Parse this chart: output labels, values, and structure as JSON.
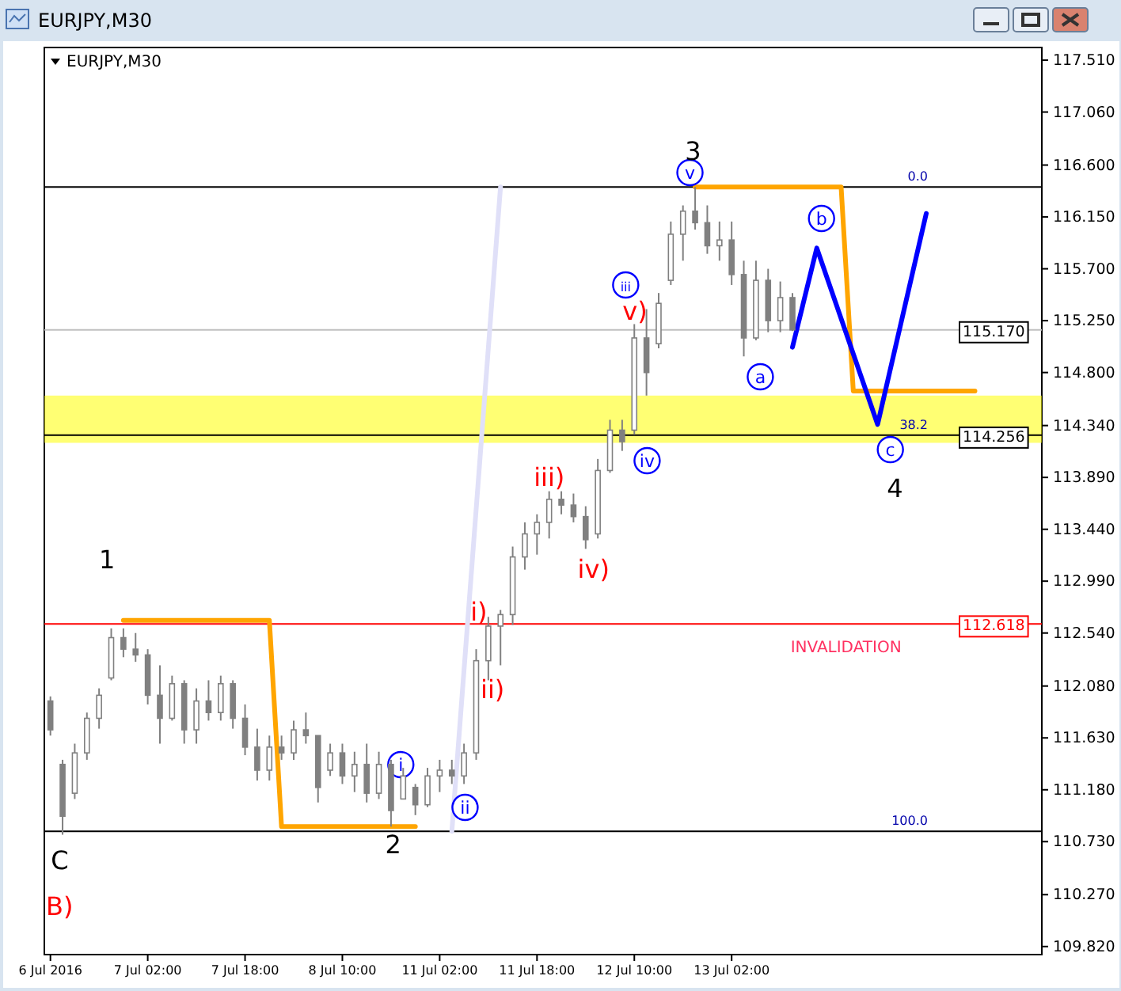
{
  "chart_data": {
    "type": "candlestick",
    "title": "EURJPY,M30",
    "subtitle": "EURJPY,M30",
    "color": "#808080",
    "categories": [
      "6 Jul 2016",
      null,
      null,
      null,
      null,
      null,
      null,
      null,
      "7 Jul 02:00",
      null,
      null,
      null,
      null,
      null,
      null,
      null,
      "7 Jul 18:00",
      null,
      null,
      null,
      null,
      null,
      null,
      null,
      "8 Jul 10:00",
      null,
      null,
      null,
      null,
      null,
      null,
      null,
      "11 Jul 02:00",
      null,
      null,
      null,
      null,
      null,
      null,
      null,
      "11 Jul 18:00",
      null,
      null,
      null,
      null,
      null,
      null,
      null,
      "12 Jul 10:00",
      null,
      null,
      null,
      null,
      null,
      null,
      null,
      "13 Jul 02:00",
      null,
      null,
      null,
      null,
      null,
      null,
      null,
      null,
      null,
      null,
      null,
      null,
      null,
      null,
      null,
      null,
      null,
      null,
      null,
      null,
      null,
      null,
      null,
      null,
      null
    ],
    "ohlc": [
      [
        111.95,
        111.99,
        111.65,
        111.7
      ],
      [
        111.4,
        111.44,
        110.79,
        110.95
      ],
      [
        111.15,
        111.58,
        111.1,
        111.5
      ],
      [
        111.5,
        111.85,
        111.44,
        111.8
      ],
      [
        111.8,
        112.06,
        111.71,
        112.0
      ],
      [
        112.15,
        112.58,
        112.13,
        112.5
      ],
      [
        112.5,
        112.58,
        112.33,
        112.4
      ],
      [
        112.4,
        112.54,
        112.29,
        112.35
      ],
      [
        112.35,
        112.4,
        111.92,
        112.0
      ],
      [
        112.0,
        112.26,
        111.58,
        111.8
      ],
      [
        111.8,
        112.17,
        111.78,
        112.1
      ],
      [
        112.1,
        112.13,
        111.58,
        111.7
      ],
      [
        111.7,
        112.06,
        111.58,
        111.95
      ],
      [
        111.95,
        112.13,
        111.78,
        111.85
      ],
      [
        111.85,
        112.17,
        111.78,
        112.1
      ],
      [
        112.1,
        112.13,
        111.71,
        111.8
      ],
      [
        111.8,
        111.92,
        111.48,
        111.55
      ],
      [
        111.55,
        111.71,
        111.26,
        111.35
      ],
      [
        111.35,
        111.65,
        111.26,
        111.55
      ],
      [
        111.55,
        111.65,
        111.44,
        111.5
      ],
      [
        111.5,
        111.78,
        111.44,
        111.7
      ],
      [
        111.7,
        111.85,
        111.58,
        111.65
      ],
      [
        111.65,
        111.65,
        111.07,
        111.2
      ],
      [
        111.35,
        111.58,
        111.3,
        111.5
      ],
      [
        111.5,
        111.58,
        111.23,
        111.3
      ],
      [
        111.3,
        111.51,
        111.16,
        111.4
      ],
      [
        111.4,
        111.58,
        111.07,
        111.15
      ],
      [
        111.15,
        111.51,
        111.1,
        111.4
      ],
      [
        111.4,
        111.44,
        110.86,
        111.0
      ],
      [
        111.1,
        111.37,
        111.1,
        111.3
      ],
      [
        111.2,
        111.23,
        110.96,
        111.05
      ],
      [
        111.05,
        111.37,
        111.03,
        111.3
      ],
      [
        111.3,
        111.44,
        111.16,
        111.35
      ],
      [
        111.35,
        111.44,
        111.23,
        111.3
      ],
      [
        111.3,
        111.58,
        111.23,
        111.5
      ],
      [
        111.5,
        112.4,
        111.44,
        112.3
      ],
      [
        112.3,
        112.68,
        112.13,
        112.6
      ],
      [
        112.6,
        112.74,
        112.26,
        112.7
      ],
      [
        112.7,
        113.29,
        112.61,
        113.2
      ],
      [
        113.2,
        113.5,
        113.09,
        113.4
      ],
      [
        113.4,
        113.57,
        113.22,
        113.5
      ],
      [
        113.5,
        113.77,
        113.36,
        113.7
      ],
      [
        113.7,
        113.77,
        113.57,
        113.65
      ],
      [
        113.65,
        113.75,
        113.5,
        113.55
      ],
      [
        113.55,
        113.64,
        113.27,
        113.35
      ],
      [
        113.4,
        114.05,
        113.36,
        113.95
      ],
      [
        113.95,
        114.39,
        113.93,
        114.3
      ],
      [
        114.3,
        114.39,
        114.12,
        114.2
      ],
      [
        114.3,
        115.22,
        114.26,
        115.1
      ],
      [
        115.1,
        115.35,
        114.6,
        114.8
      ],
      [
        115.05,
        115.49,
        115.01,
        115.4
      ],
      [
        115.6,
        116.11,
        115.56,
        116.0
      ],
      [
        116.0,
        116.25,
        115.77,
        116.2
      ],
      [
        116.2,
        116.41,
        116.04,
        116.1
      ],
      [
        116.1,
        116.25,
        115.83,
        115.9
      ],
      [
        115.9,
        116.11,
        115.77,
        115.95
      ],
      [
        115.95,
        116.11,
        115.56,
        115.65
      ],
      [
        115.65,
        115.77,
        114.94,
        115.1
      ],
      [
        115.1,
        115.77,
        115.08,
        115.6
      ],
      [
        115.6,
        115.7,
        115.15,
        115.25
      ],
      [
        115.25,
        115.59,
        115.15,
        115.45
      ],
      [
        115.45,
        115.49,
        115.16,
        115.17
      ],
      null,
      null,
      null,
      null,
      null,
      null,
      null,
      null,
      null,
      null,
      null,
      null,
      null,
      null,
      null,
      null,
      null,
      null,
      null,
      null
    ],
    "series": [
      {
        "type": "line",
        "color": "#e0e0f8",
        "values": [
          null,
          null,
          null,
          null,
          null,
          null,
          null,
          null,
          null,
          null,
          null,
          null,
          null,
          null,
          null,
          null,
          null,
          null,
          null,
          null,
          null,
          null,
          null,
          null,
          null,
          null,
          null,
          null,
          null,
          null,
          null,
          null,
          null,
          110.82,
          null,
          null,
          null,
          116.41,
          null,
          null,
          null,
          null,
          null,
          null,
          null,
          null,
          null,
          null,
          null,
          null,
          null,
          null,
          null,
          null,
          null,
          null,
          null,
          null,
          null,
          null,
          null,
          null,
          null,
          null,
          null,
          null,
          null,
          null,
          null,
          null,
          null,
          null,
          null,
          null,
          null,
          null,
          null,
          null,
          null,
          null,
          null,
          null
        ]
      },
      {
        "type": "line",
        "color": "#ffa500",
        "values": [
          null,
          null,
          null,
          null,
          null,
          null,
          112.65,
          null,
          null,
          null,
          null,
          null,
          null,
          null,
          null,
          null,
          null,
          null,
          112.65,
          110.86,
          null,
          null,
          null,
          null,
          null,
          null,
          null,
          null,
          null,
          null,
          110.86,
          null,
          null,
          null,
          null,
          null,
          null,
          null,
          null,
          null,
          null,
          null,
          null,
          null,
          null,
          null,
          null,
          null,
          null,
          null,
          null,
          null,
          null,
          null,
          null,
          null,
          null,
          null,
          null,
          null,
          null,
          null,
          null,
          null,
          null,
          null,
          null,
          null,
          null,
          null,
          null,
          null,
          null,
          null,
          null,
          null,
          null,
          null,
          null,
          null,
          null,
          null
        ]
      },
      {
        "type": "line",
        "color": "#ffa500",
        "values": [
          null,
          null,
          null,
          null,
          null,
          null,
          null,
          null,
          null,
          null,
          null,
          null,
          null,
          null,
          null,
          null,
          null,
          null,
          null,
          null,
          null,
          null,
          null,
          null,
          null,
          null,
          null,
          null,
          null,
          null,
          null,
          null,
          null,
          null,
          null,
          null,
          null,
          null,
          null,
          null,
          null,
          null,
          null,
          null,
          null,
          null,
          null,
          null,
          null,
          null,
          null,
          null,
          null,
          116.41,
          null,
          null,
          null,
          null,
          null,
          null,
          null,
          null,
          null,
          null,
          null,
          116.41,
          114.64,
          null,
          null,
          null,
          null,
          null,
          null,
          null,
          null,
          null,
          114.64,
          null,
          null,
          null,
          null,
          null
        ]
      },
      {
        "type": "line",
        "color": "#0000ff",
        "values": [
          null,
          null,
          null,
          null,
          null,
          null,
          null,
          null,
          null,
          null,
          null,
          null,
          null,
          null,
          null,
          null,
          null,
          null,
          null,
          null,
          null,
          null,
          null,
          null,
          null,
          null,
          null,
          null,
          null,
          null,
          null,
          null,
          null,
          null,
          null,
          null,
          null,
          null,
          null,
          null,
          null,
          null,
          null,
          null,
          null,
          null,
          null,
          null,
          null,
          null,
          null,
          null,
          null,
          null,
          null,
          null,
          null,
          null,
          null,
          null,
          null,
          115.02,
          null,
          115.88,
          null,
          null,
          null,
          null,
          114.35,
          null,
          null,
          null,
          116.18,
          null,
          null,
          null,
          null,
          null,
          null,
          null,
          null,
          null
        ]
      }
    ],
    "ylim": [
      109.75,
      117.62
    ],
    "yticks": [
      {
        "value": 117.51,
        "label": "117.510"
      },
      {
        "value": 117.06,
        "label": "117.060"
      },
      {
        "value": 116.6,
        "label": "116.600"
      },
      {
        "value": 116.15,
        "label": "116.150"
      },
      {
        "value": 115.7,
        "label": "115.700"
      },
      {
        "value": 115.25,
        "label": "115.250"
      },
      {
        "value": 114.8,
        "label": "114.800"
      },
      {
        "value": 114.34,
        "label": "114.340"
      },
      {
        "value": 113.89,
        "label": "113.890"
      },
      {
        "value": 113.44,
        "label": "113.440"
      },
      {
        "value": 112.99,
        "label": "112.990"
      },
      {
        "value": 112.54,
        "label": "112.540"
      },
      {
        "value": 112.08,
        "label": "112.080"
      },
      {
        "value": 111.63,
        "label": "111.630"
      },
      {
        "value": 111.18,
        "label": "111.180"
      },
      {
        "value": 110.73,
        "label": "110.730"
      },
      {
        "value": 110.27,
        "label": "110.270"
      },
      {
        "value": 109.82,
        "label": "109.820"
      }
    ],
    "bands": [
      {
        "axis": "y",
        "from": 114.19,
        "to": 114.6,
        "color": "#ffff00"
      }
    ],
    "ref_lines": [
      {
        "axis": "y",
        "value": 116.41,
        "color": "#000000"
      },
      {
        "axis": "y",
        "value": 115.17,
        "label": "115.170",
        "color": "#c0c0c0"
      },
      {
        "axis": "y",
        "value": 114.256,
        "label": "114.256",
        "color": "#000000"
      },
      {
        "axis": "y",
        "value": 112.618,
        "label": "112.618",
        "color": "#ff0000"
      },
      {
        "axis": "y",
        "value": 110.82,
        "color": "#000000"
      }
    ],
    "annotations": [
      {
        "text": "0.0",
        "y": 116.41
      },
      {
        "text": "38.2",
        "y": 114.256
      },
      {
        "text": "100.0",
        "y": 110.82
      },
      "i",
      "ii",
      "iii",
      "iv",
      "v",
      "a",
      "b",
      "c",
      "i)",
      "ii)",
      "iii)",
      "iv)",
      "v)",
      "B)",
      "1",
      "C",
      "2",
      "3",
      "4",
      "INVALIDATION"
    ]
  }
}
